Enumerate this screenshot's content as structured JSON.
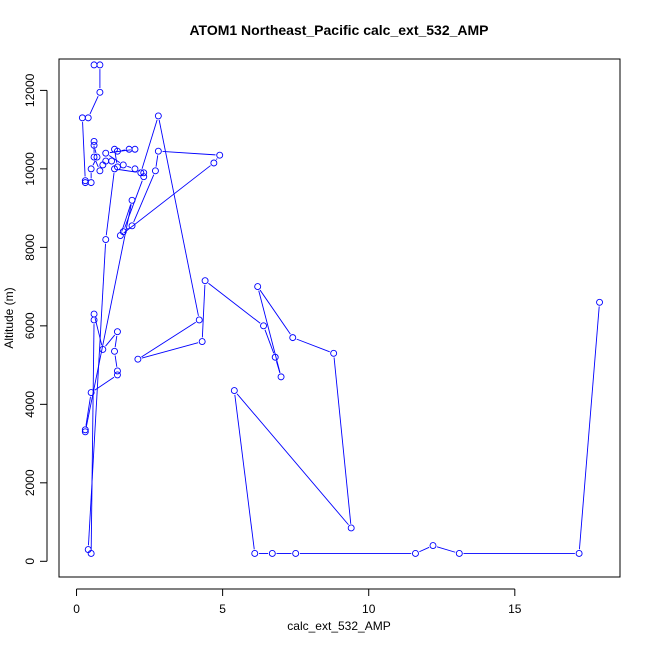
{
  "chart_data": {
    "type": "scatter",
    "title": "ATOM1 Northeast_Pacific calc_ext_532_AMP",
    "xlabel": "calc_ext_532_AMP",
    "ylabel": "Altitude (m)",
    "xlim": [
      -0.6,
      18.6
    ],
    "ylim": [
      -400,
      12800
    ],
    "xticks": [
      0,
      5,
      10,
      15
    ],
    "yticks": [
      0,
      2000,
      4000,
      6000,
      8000,
      10000,
      12000
    ],
    "grid": false,
    "series_color": "#0000ff",
    "series": [
      {
        "mode": "lines+markers",
        "points": [
          [
            0.6,
            12650
          ],
          [
            0.8,
            12650
          ],
          [
            0.8,
            11950
          ],
          [
            0.4,
            11300
          ],
          [
            0.2,
            11300
          ],
          [
            0.3,
            9700
          ],
          [
            0.3,
            9650
          ],
          [
            0.5,
            9650
          ],
          [
            0.5,
            10000
          ],
          [
            0.7,
            10300
          ],
          [
            0.6,
            10600
          ],
          [
            0.6,
            10700
          ],
          [
            0.6,
            10300
          ],
          [
            0.8,
            9950
          ],
          [
            0.9,
            10100
          ],
          [
            1.0,
            10200
          ],
          [
            1.2,
            10200
          ],
          [
            1.4,
            10050
          ],
          [
            1.3,
            10500
          ],
          [
            1.4,
            10450
          ],
          [
            1.8,
            10500
          ],
          [
            2.0,
            10500
          ],
          [
            1.0,
            10400
          ],
          [
            1.6,
            10100
          ],
          [
            2.0,
            10000
          ],
          [
            2.3,
            9900
          ],
          [
            2.3,
            9800
          ],
          [
            1.6,
            8400
          ],
          [
            1.9,
            8550
          ],
          [
            2.7,
            9950
          ],
          [
            2.8,
            10450
          ],
          [
            4.9,
            10350
          ],
          [
            4.7,
            10150
          ],
          [
            1.5,
            8300
          ],
          [
            1.9,
            9200
          ],
          [
            0.3,
            3300
          ],
          [
            0.3,
            3350
          ],
          [
            0.5,
            4300
          ],
          [
            1.4,
            4750
          ],
          [
            1.4,
            4850
          ],
          [
            1.3,
            5350
          ],
          [
            1.4,
            5850
          ],
          [
            0.9,
            5400
          ],
          [
            0.6,
            6300
          ],
          [
            0.6,
            6150
          ],
          [
            0.5,
            200
          ],
          [
            0.4,
            300
          ],
          [
            1.0,
            8200
          ],
          [
            1.3,
            10000
          ],
          [
            2.2,
            9900
          ],
          [
            2.8,
            11350
          ],
          [
            4.2,
            6150
          ],
          [
            2.1,
            5150
          ],
          [
            4.3,
            5600
          ],
          [
            4.4,
            7150
          ],
          [
            6.4,
            6000
          ],
          [
            6.8,
            5200
          ],
          [
            7.0,
            4700
          ],
          [
            6.2,
            7000
          ],
          [
            7.4,
            5700
          ],
          [
            8.8,
            5300
          ],
          [
            9.4,
            850
          ],
          [
            5.4,
            4350
          ],
          [
            6.1,
            200
          ],
          [
            6.7,
            200
          ],
          [
            7.5,
            200
          ],
          [
            11.6,
            200
          ],
          [
            12.2,
            400
          ],
          [
            13.1,
            200
          ],
          [
            17.2,
            200
          ],
          [
            17.9,
            6600
          ]
        ]
      }
    ]
  }
}
